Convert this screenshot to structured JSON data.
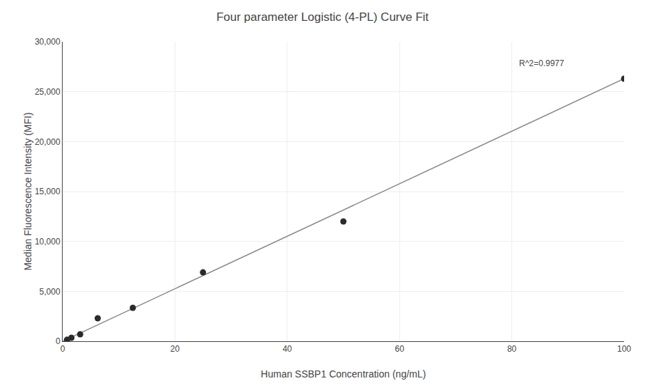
{
  "chart_data": {
    "type": "scatter",
    "title": "Four parameter Logistic (4-PL) Curve Fit",
    "xlabel": "Human SSBP1 Concentration (ng/mL)",
    "ylabel": "Median Fluorescence Intensity (MFI)",
    "series": [
      {
        "type": "line",
        "color": "#888888",
        "x": [
          0,
          100
        ],
        "values": [
          0,
          26300
        ]
      },
      {
        "type": "scatter",
        "color": "#2b2b2b",
        "x": [
          0.781,
          1.5625,
          3.125,
          6.25,
          12.5,
          25,
          50,
          100
        ],
        "values": [
          150,
          350,
          700,
          2300,
          3350,
          6900,
          12000,
          26300
        ]
      }
    ],
    "annotations": [
      {
        "text": "R^2=0.9977",
        "x": 81,
        "y": 27200
      }
    ],
    "xlim": [
      0,
      100
    ],
    "ylim": [
      0,
      30000
    ],
    "xticks": [
      0,
      20,
      40,
      60,
      80,
      100
    ],
    "yticks": [
      0,
      {
        "value": 5000,
        "label": "5,000"
      },
      {
        "value": 10000,
        "label": "10,000"
      },
      {
        "value": 15000,
        "label": "15,000"
      },
      {
        "value": 20000,
        "label": "20,000"
      },
      {
        "value": 25000,
        "label": "25,000"
      },
      {
        "value": 30000,
        "label": "30,000"
      }
    ],
    "grid": true
  }
}
